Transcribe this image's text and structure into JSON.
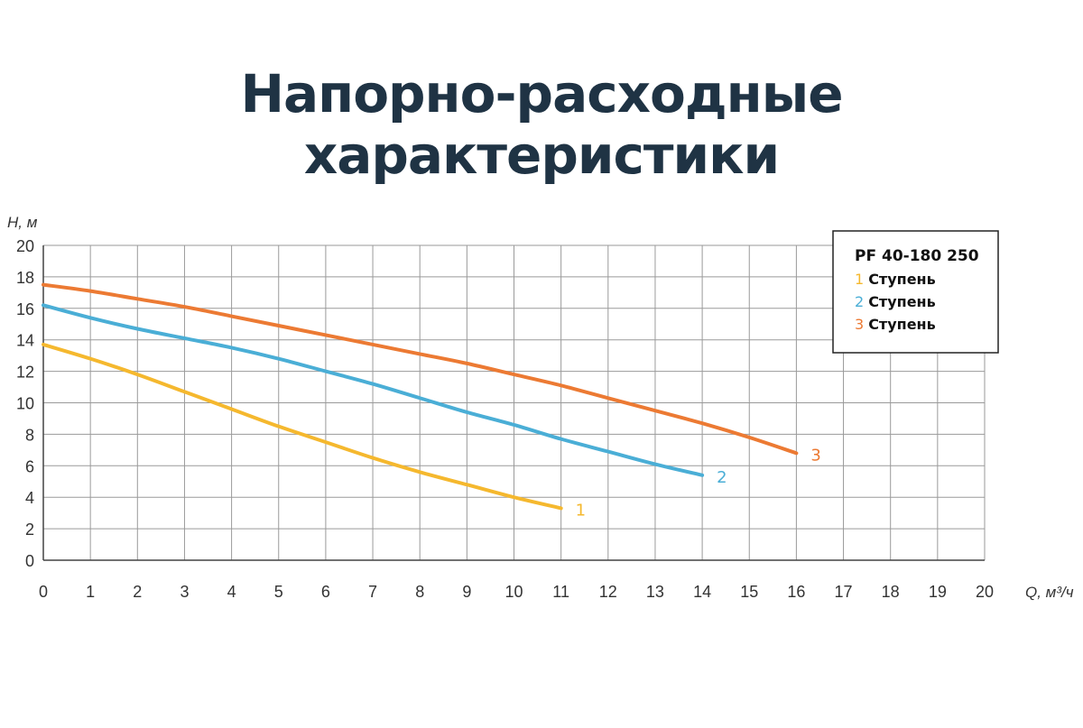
{
  "page_title": "Напорно-расходные характеристики",
  "chart_data": {
    "type": "line",
    "title": "",
    "xlabel": "Q, м³/ч",
    "ylabel": "H, м",
    "xlim": [
      0,
      20
    ],
    "ylim": [
      0,
      20
    ],
    "x_ticks": [
      0,
      1,
      2,
      3,
      4,
      5,
      6,
      7,
      8,
      9,
      10,
      11,
      12,
      13,
      14,
      15,
      16,
      17,
      18,
      19,
      20
    ],
    "y_ticks": [
      0,
      2,
      4,
      6,
      8,
      10,
      12,
      14,
      16,
      18,
      20
    ],
    "grid": true,
    "legend": {
      "position": "top-right",
      "title": "PF 40-180 250",
      "items": [
        {
          "num": "1",
          "label": "Ступень",
          "color": "#f5b82e"
        },
        {
          "num": "2",
          "label": "Ступень",
          "color": "#4aaed6"
        },
        {
          "num": "3",
          "label": "Ступень",
          "color": "#ec7a33"
        }
      ]
    },
    "series": [
      {
        "end_label": "1",
        "color": "#f5b82e",
        "x": [
          0,
          1,
          2,
          3,
          4,
          5,
          6,
          7,
          8,
          9,
          10,
          11
        ],
        "y": [
          13.7,
          12.8,
          11.8,
          10.7,
          9.6,
          8.5,
          7.5,
          6.5,
          5.6,
          4.8,
          4.0,
          3.3
        ]
      },
      {
        "end_label": "2",
        "color": "#4aaed6",
        "x": [
          0,
          1,
          2,
          3,
          4,
          5,
          6,
          7,
          8,
          9,
          10,
          11,
          12,
          13,
          14
        ],
        "y": [
          16.2,
          15.4,
          14.7,
          14.1,
          13.5,
          12.8,
          12.0,
          11.2,
          10.3,
          9.4,
          8.6,
          7.7,
          6.9,
          6.1,
          5.4
        ]
      },
      {
        "end_label": "3",
        "color": "#ec7a33",
        "x": [
          0,
          1,
          2,
          3,
          4,
          5,
          6,
          7,
          8,
          9,
          10,
          11,
          12,
          13,
          14,
          15,
          16
        ],
        "y": [
          17.5,
          17.1,
          16.6,
          16.1,
          15.5,
          14.9,
          14.3,
          13.7,
          13.1,
          12.5,
          11.8,
          11.1,
          10.3,
          9.5,
          8.7,
          7.8,
          6.8
        ]
      }
    ]
  }
}
